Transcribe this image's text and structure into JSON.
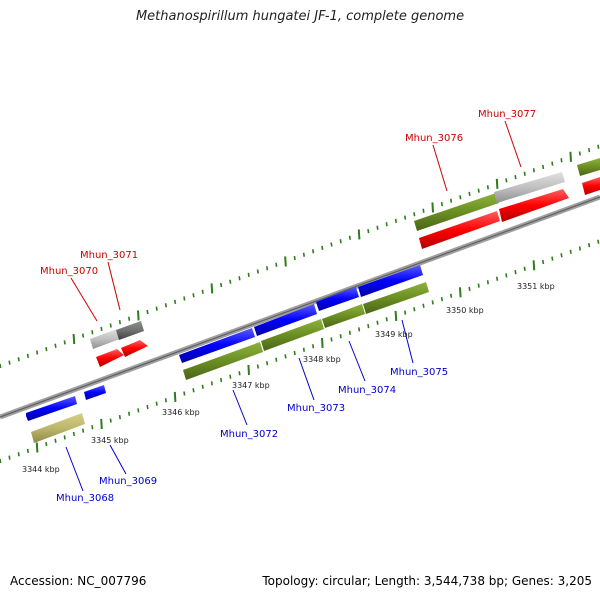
{
  "title": "Methanospirillum hungatei JF-1, complete genome",
  "accession_text": "Accession: NC_007796",
  "summary_text": "Topology: circular; Length: 3,544,738 bp; Genes: 3,205",
  "colors": {
    "backbone": "#808080",
    "ticks": "#2e7d1a",
    "forward_gene": "#ff0000",
    "forward_gene_alt": "#c0c0c0",
    "reverse_gene": "#0000ff",
    "cds_green": "#6b8e23",
    "cds_khaki": "#bdb76b",
    "label_forward": "#cc0000",
    "label_reverse": "#0000cc"
  },
  "kbp_labels": [
    "3344 kbp",
    "3345 kbp",
    "3346 kbp",
    "3347 kbp",
    "3348 kbp",
    "3349 kbp",
    "3350 kbp",
    "3351 kbp"
  ],
  "genes_forward": [
    "Mhun_3070",
    "Mhun_3071",
    "Mhun_3076",
    "Mhun_3077"
  ],
  "genes_reverse": [
    "Mhun_3068",
    "Mhun_3069",
    "Mhun_3072",
    "Mhun_3073",
    "Mhun_3074",
    "Mhun_3075"
  ]
}
